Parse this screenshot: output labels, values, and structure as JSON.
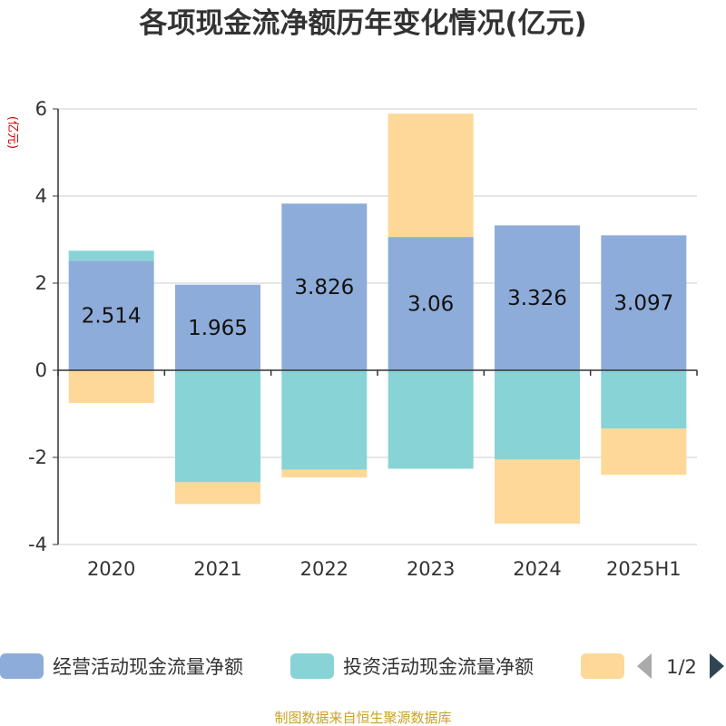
{
  "chart_data": {
    "type": "bar",
    "stacked": true,
    "title": "各项现金流净额历年变化情况(亿元)",
    "unit_label": "(亿元)",
    "categories": [
      "2020",
      "2021",
      "2022",
      "2023",
      "2024",
      "2025H1"
    ],
    "series": [
      {
        "name": "经营活动现金流量净额",
        "color": "#8eacd9",
        "values": [
          2.514,
          1.965,
          3.826,
          3.06,
          3.326,
          3.097
        ],
        "data_labels": [
          "2.514",
          "1.965",
          "3.826",
          "3.06",
          "3.326",
          "3.097"
        ]
      },
      {
        "name": "投资活动现金流量净额",
        "color": "#87d3d6",
        "values": [
          0.23,
          -2.57,
          -2.28,
          -2.26,
          -2.05,
          -1.34
        ]
      },
      {
        "name": "",
        "color": "#fdd898",
        "values": [
          -0.75,
          -0.5,
          -0.18,
          2.83,
          -1.47,
          -1.06
        ]
      }
    ],
    "ylim": [
      -4,
      6
    ],
    "yticks": [
      "-4",
      "-2",
      "0",
      "2",
      "4",
      "6"
    ],
    "grid": true,
    "legend_position": "bottom",
    "legend_page": "1/2",
    "source": "制图数据来自恒生聚源数据库"
  }
}
